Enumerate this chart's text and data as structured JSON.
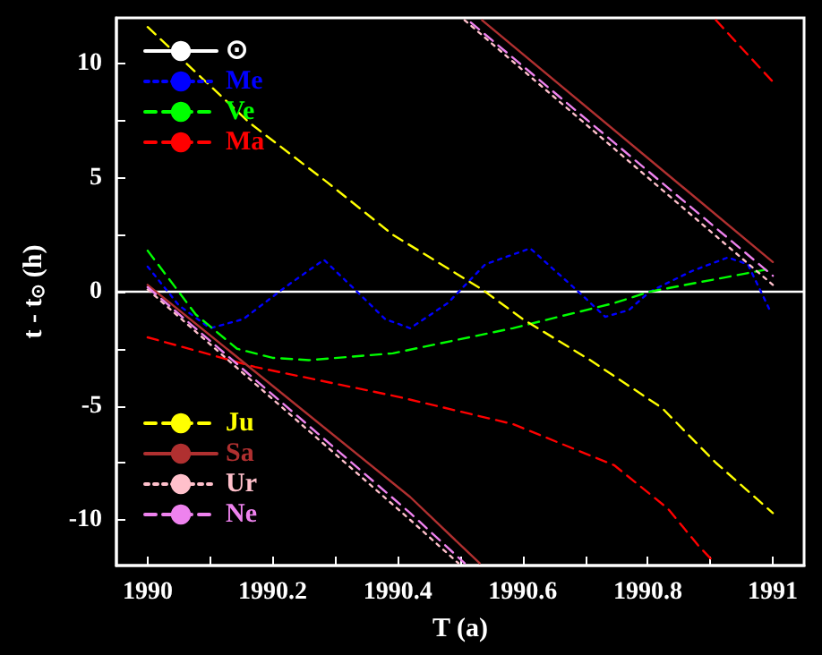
{
  "chart_data": {
    "type": "line",
    "xlabel": "T (a)",
    "ylabel": "t - t$_{⊙}$ (h)",
    "xlim": [
      1989.95,
      1991.05
    ],
    "xticks": [
      1990,
      {
        "value": 1990.1,
        "label": null
      },
      1990.2,
      {
        "value": 1990.3,
        "label": null
      },
      1990.4,
      {
        "value": 1990.5,
        "label": null
      },
      1990.6,
      {
        "value": 1990.7,
        "label": null
      },
      1990.8,
      {
        "value": 1990.9,
        "label": null
      },
      1991
    ],
    "ylim": [
      -12,
      12
    ],
    "yticks": [
      -10,
      {
        "value": -7.5,
        "label": null
      },
      -5,
      {
        "value": -2.5,
        "label": null
      },
      0,
      {
        "value": 2.5,
        "label": null
      },
      5,
      {
        "value": 7.5,
        "label": null
      },
      10
    ],
    "grid": false,
    "legend": "left",
    "marker": "none",
    "series": [
      {
        "name": "⊙",
        "color": "#ffffff",
        "line_style": "solid",
        "x": [
          1989.95,
          1991.05
        ],
        "values": [
          0,
          0
        ]
      },
      {
        "name": "Me",
        "color": "#0000ff",
        "line_style": "dotted",
        "x": [
          1990,
          1990.05,
          1990.1,
          1990.153,
          1990.22,
          1990.282,
          1990.335,
          1990.38,
          1990.42,
          1990.48,
          1990.54,
          1990.612,
          1990.689,
          1990.732,
          1990.77,
          1990.803,
          1990.87,
          1990.928,
          1990.96,
          1990.995
        ],
        "values": [
          1.1,
          -0.6,
          -1.6,
          -1.2,
          0.2,
          1.4,
          0,
          -1.2,
          -1.6,
          -0.5,
          1.2,
          1.9,
          0,
          -1.1,
          -0.8,
          0,
          0.9,
          1.5,
          1.2,
          -0.8
        ]
      },
      {
        "name": "Ve",
        "color": "#00ff00",
        "line_style": "dashed",
        "x": [
          1990,
          1990.077,
          1990.143,
          1990.2,
          1990.258,
          1990.392,
          1990.584,
          1990.746,
          1990.803,
          1990.995
        ],
        "values": [
          1.8,
          -1,
          -2.5,
          -2.9,
          -3,
          -2.7,
          -1.6,
          -0.5,
          0,
          1
        ]
      },
      {
        "name": "Ma",
        "color": "#ff0000",
        "line_style": "dashed",
        "x": [
          1990,
          1990.172,
          1990.4,
          1990.584,
          1990.746,
          1990.832,
          1990.88,
          1990.904,
          null,
          1990.909,
          1991
        ],
        "values": [
          -2,
          -3.3,
          -4.6,
          -5.8,
          -7.6,
          -9.5,
          -11.1,
          -11.8,
          null,
          11.9,
          9.2
        ]
      },
      {
        "name": "Ju",
        "color": "#ffff00",
        "line_style": "dashed",
        "x": [
          1990,
          1990.163,
          1990.287,
          1990.392,
          1990.535,
          1990.6,
          1990.708,
          1990.823,
          1990.909,
          1991
        ],
        "values": [
          11.6,
          7.4,
          4.8,
          2.5,
          0.1,
          -1.2,
          -3,
          -5.1,
          -7.5,
          -9.7
        ]
      },
      {
        "name": "Sa",
        "color": "#b03030",
        "line_style": "solid",
        "x": [
          1990,
          1990.42,
          1990.531,
          null,
          1990.535,
          1991
        ],
        "values": [
          0.3,
          -9,
          -11.9,
          null,
          11.9,
          1.3
        ]
      },
      {
        "name": "Ur",
        "color": "#ffc0cb",
        "line_style": "dotted",
        "x": [
          1990,
          1990.42,
          1990.497,
          null,
          1990.507,
          1991
        ],
        "values": [
          0.1,
          -10,
          -11.9,
          null,
          11.9,
          0.3
        ]
      },
      {
        "name": "Ne",
        "color": "#ee82ee",
        "line_style": "dashed",
        "x": [
          1990,
          1990.42,
          1990.507,
          null,
          1990.517,
          1991
        ],
        "values": [
          0.2,
          -9.7,
          -11.9,
          null,
          11.8,
          0.7
        ]
      }
    ]
  }
}
